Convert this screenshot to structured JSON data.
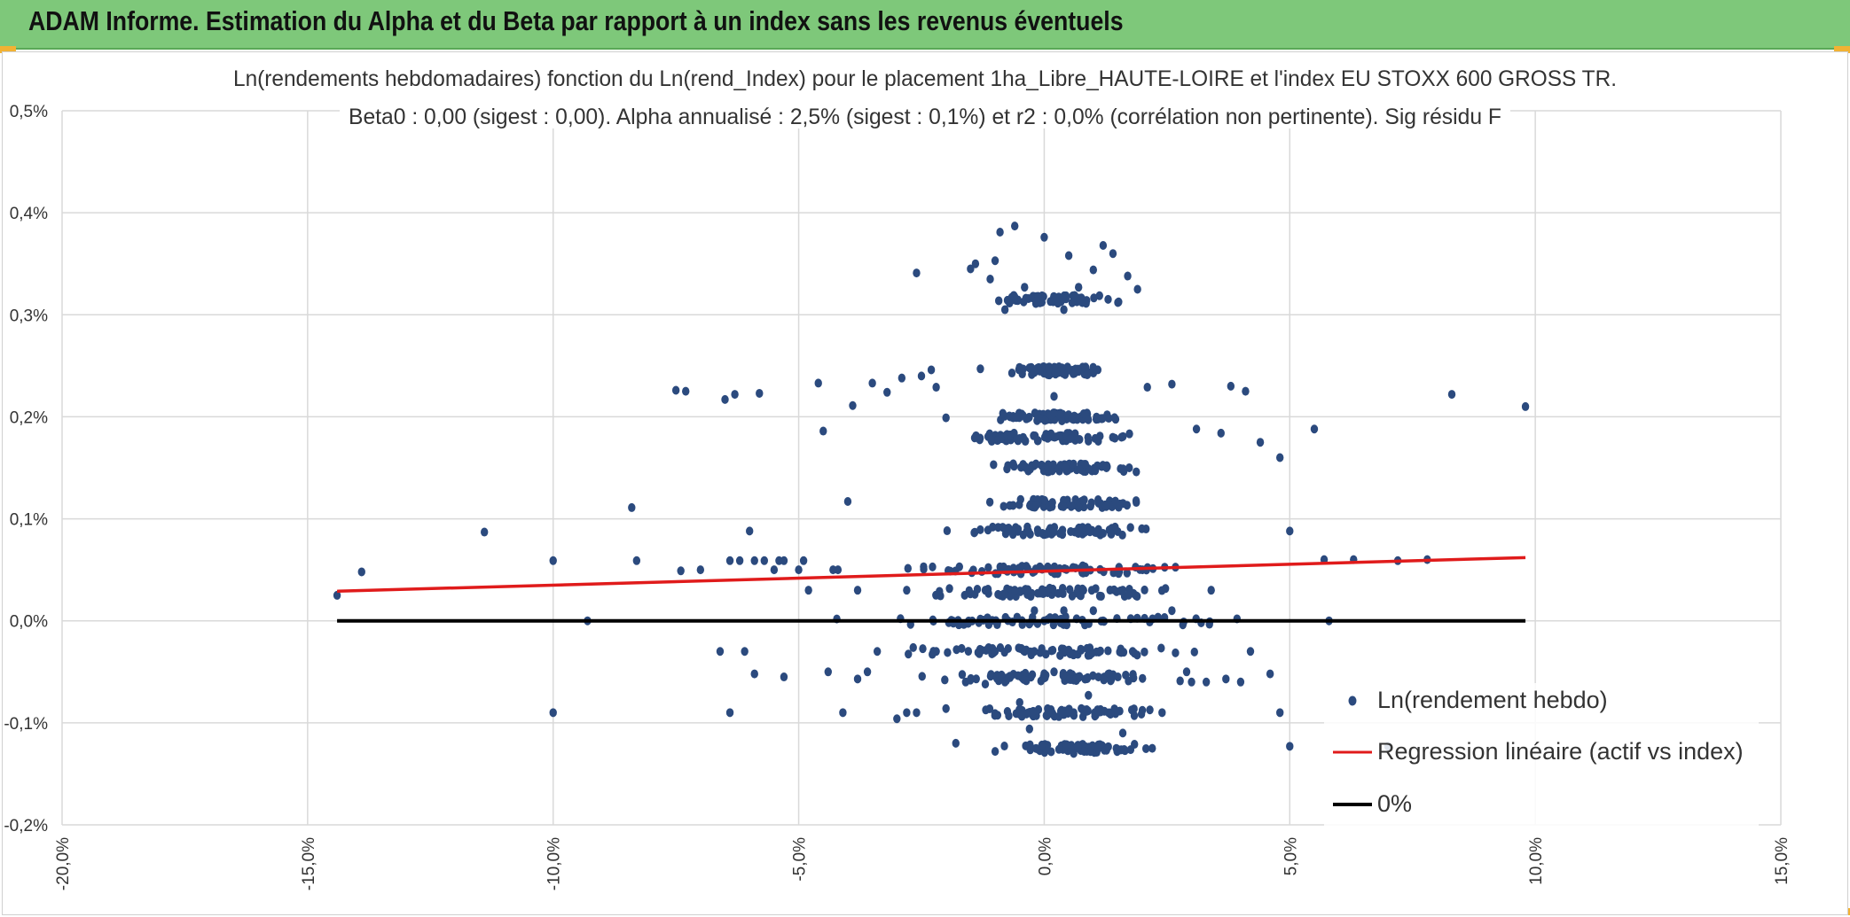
{
  "banner": {
    "title": "ADAM Informe. Estimation du Alpha et du Beta par rapport à un index sans les revenus éventuels"
  },
  "chart_data": {
    "type": "scatter",
    "title": "Ln(rendements hebdomadaires) fonction du Ln(rend_Index) pour le placement 1ha_Libre_HAUTE-LOIRE et l'index EU STOXX 600 GROSS TR.",
    "subtitle": "Beta0 : 0,00 (sigest : 0,00). Alpha annualisé : 2,5% (sigest : 0,1%) et r2 : 0,0% (corrélation non pertinente). Sig résidu F",
    "xlabel": "",
    "ylabel": "",
    "xlim": [
      -0.2,
      0.15
    ],
    "ylim": [
      -0.002,
      0.005
    ],
    "x_ticks": [
      "-20,0%",
      "-15,0%",
      "-10,0%",
      "-5,0%",
      "0,0%",
      "5,0%",
      "10,0%",
      "15,0%"
    ],
    "y_ticks": [
      "0,5%",
      "0,4%",
      "0,3%",
      "0,2%",
      "0,1%",
      "0,0%",
      "-0,1%",
      "-0,2%"
    ],
    "grid": true,
    "legend_position": "bottom-right",
    "series": [
      {
        "name": "Ln(rendement hebdo)",
        "kind": "points",
        "color": "#2b4a7e",
        "x": [
          -0.144,
          -0.139,
          -0.114,
          -0.1,
          -0.093,
          -0.084,
          -0.083,
          -0.075,
          -0.074,
          -0.073,
          -0.07,
          -0.065,
          -0.064,
          -0.063,
          -0.062,
          -0.06,
          -0.059,
          -0.058,
          -0.057,
          -0.055,
          -0.054,
          -0.053,
          -0.05,
          -0.049,
          -0.046,
          -0.045,
          -0.043,
          -0.04,
          -0.039,
          -0.035,
          -0.032,
          -0.029,
          -0.026,
          -0.025,
          -0.023,
          -0.022,
          -0.02,
          -0.015,
          -0.014,
          -0.013,
          -0.011,
          -0.01,
          -0.009,
          -0.008,
          -0.006,
          -0.004,
          -0.003,
          0.0,
          0.002,
          0.004,
          0.005,
          0.007,
          0.01,
          0.012,
          0.014,
          0.015,
          0.017,
          0.019,
          0.021,
          0.026,
          0.031,
          0.036,
          0.038,
          0.041,
          0.044,
          0.048,
          0.05,
          0.055,
          0.057,
          0.063,
          0.072,
          0.078,
          0.083,
          0.098,
          -0.1,
          -0.059,
          -0.061,
          -0.044,
          -0.028,
          -0.018,
          -0.005,
          0.006,
          0.011,
          0.024,
          0.037,
          0.048,
          0.05,
          0.07,
          -0.066,
          -0.064,
          -0.038,
          -0.03,
          -0.02,
          -0.012,
          -0.003,
          0.003,
          0.009,
          0.016,
          0.022,
          0.03,
          0.046,
          0.058,
          -0.053,
          -0.034,
          -0.022,
          -0.008,
          0.002,
          0.015,
          0.029,
          0.042,
          -0.041,
          -0.026,
          -0.016,
          -0.004,
          0.006,
          0.018,
          0.033,
          0.04,
          -0.036,
          -0.01,
          0.0,
          0.012,
          -0.004,
          -0.012,
          0.008,
          0.016,
          -0.048,
          -0.042,
          -0.028,
          -0.006,
          0.02,
          0.034,
          -0.038,
          -0.002,
          0.004,
          0.01,
          0.026
        ],
        "y": [
          0.00025,
          0.00048,
          0.00087,
          0.00059,
          0.0,
          0.00111,
          0.00059,
          0.00226,
          0.00049,
          0.00225,
          0.0005,
          0.00217,
          0.00059,
          0.00222,
          0.00059,
          0.00088,
          0.00059,
          0.00223,
          0.00059,
          0.0005,
          0.00059,
          0.00059,
          0.0005,
          0.00059,
          0.00233,
          0.00186,
          0.0005,
          0.00117,
          0.00211,
          0.00233,
          0.00224,
          0.00238,
          0.00341,
          0.0024,
          0.00246,
          0.00229,
          0.00199,
          0.00345,
          0.0035,
          0.00247,
          0.00335,
          0.00353,
          0.00381,
          0.00305,
          0.00387,
          0.00327,
          0.00248,
          0.00376,
          0.0022,
          0.00305,
          0.00358,
          0.00327,
          0.00344,
          0.00368,
          0.0036,
          0.00312,
          0.00338,
          0.00325,
          0.00229,
          0.00232,
          0.00188,
          0.00184,
          0.0023,
          0.00225,
          0.00175,
          0.0016,
          0.00088,
          0.00188,
          0.0006,
          0.0006,
          0.00059,
          0.0006,
          0.00222,
          0.0021,
          -0.0009,
          -0.00052,
          -0.0003,
          -0.0005,
          -0.0009,
          -0.0012,
          -0.0008,
          -0.0013,
          -0.00125,
          -0.0009,
          -0.00057,
          -0.0009,
          -0.00123,
          -0.00123,
          -0.0003,
          -0.0009,
          -0.00057,
          -0.00096,
          -0.00086,
          -0.00062,
          -0.00106,
          -0.00126,
          -0.00073,
          -0.0011,
          -0.00125,
          -0.0006,
          -0.00052,
          0.0,
          -0.00055,
          -0.0003,
          -0.0003,
          -0.0006,
          -0.0005,
          -0.00055,
          -0.0005,
          -0.0003,
          -0.0009,
          -0.0009,
          -0.0006,
          -0.0003,
          -0.0009,
          -0.0003,
          -0.0006,
          -0.0006,
          -0.0005,
          -0.0003,
          0.0,
          0.0,
          0.0003,
          0.0003,
          0.0003,
          0.0003,
          0.0003,
          0.0005,
          0.0003,
          0.0003,
          0.0005,
          0.0003,
          0.0003,
          0.0001,
          0.0001,
          0.0001,
          0.0001
        ],
        "bands_y": [
          -0.00125,
          -0.0009,
          -0.00055,
          -0.0003,
          0.0,
          0.00028,
          0.0005,
          0.00088,
          0.00115,
          0.0015,
          0.0018,
          0.002,
          0.00245,
          0.00315
        ],
        "bands_x_range": [
          [
            -0.015,
            0.028
          ],
          [
            -0.02,
            0.03
          ],
          [
            -0.028,
            0.03
          ],
          [
            -0.035,
            0.035
          ],
          [
            -0.05,
            0.05
          ],
          [
            -0.032,
            0.035
          ],
          [
            -0.04,
            0.04
          ],
          [
            -0.025,
            0.03
          ],
          [
            -0.02,
            0.025
          ],
          [
            -0.018,
            0.022
          ],
          [
            -0.025,
            0.025
          ],
          [
            -0.015,
            0.02
          ],
          [
            -0.01,
            0.015
          ],
          [
            -0.012,
            0.018
          ]
        ]
      },
      {
        "name": "Regression linéaire (actif vs index)",
        "kind": "line",
        "color": "#e01b1b",
        "x": [
          -0.144,
          0.098
        ],
        "y": [
          0.00029,
          0.00062
        ]
      },
      {
        "name": "0%",
        "kind": "line",
        "color": "#000000",
        "x": [
          -0.144,
          0.098
        ],
        "y": [
          0.0,
          0.0
        ]
      }
    ]
  }
}
